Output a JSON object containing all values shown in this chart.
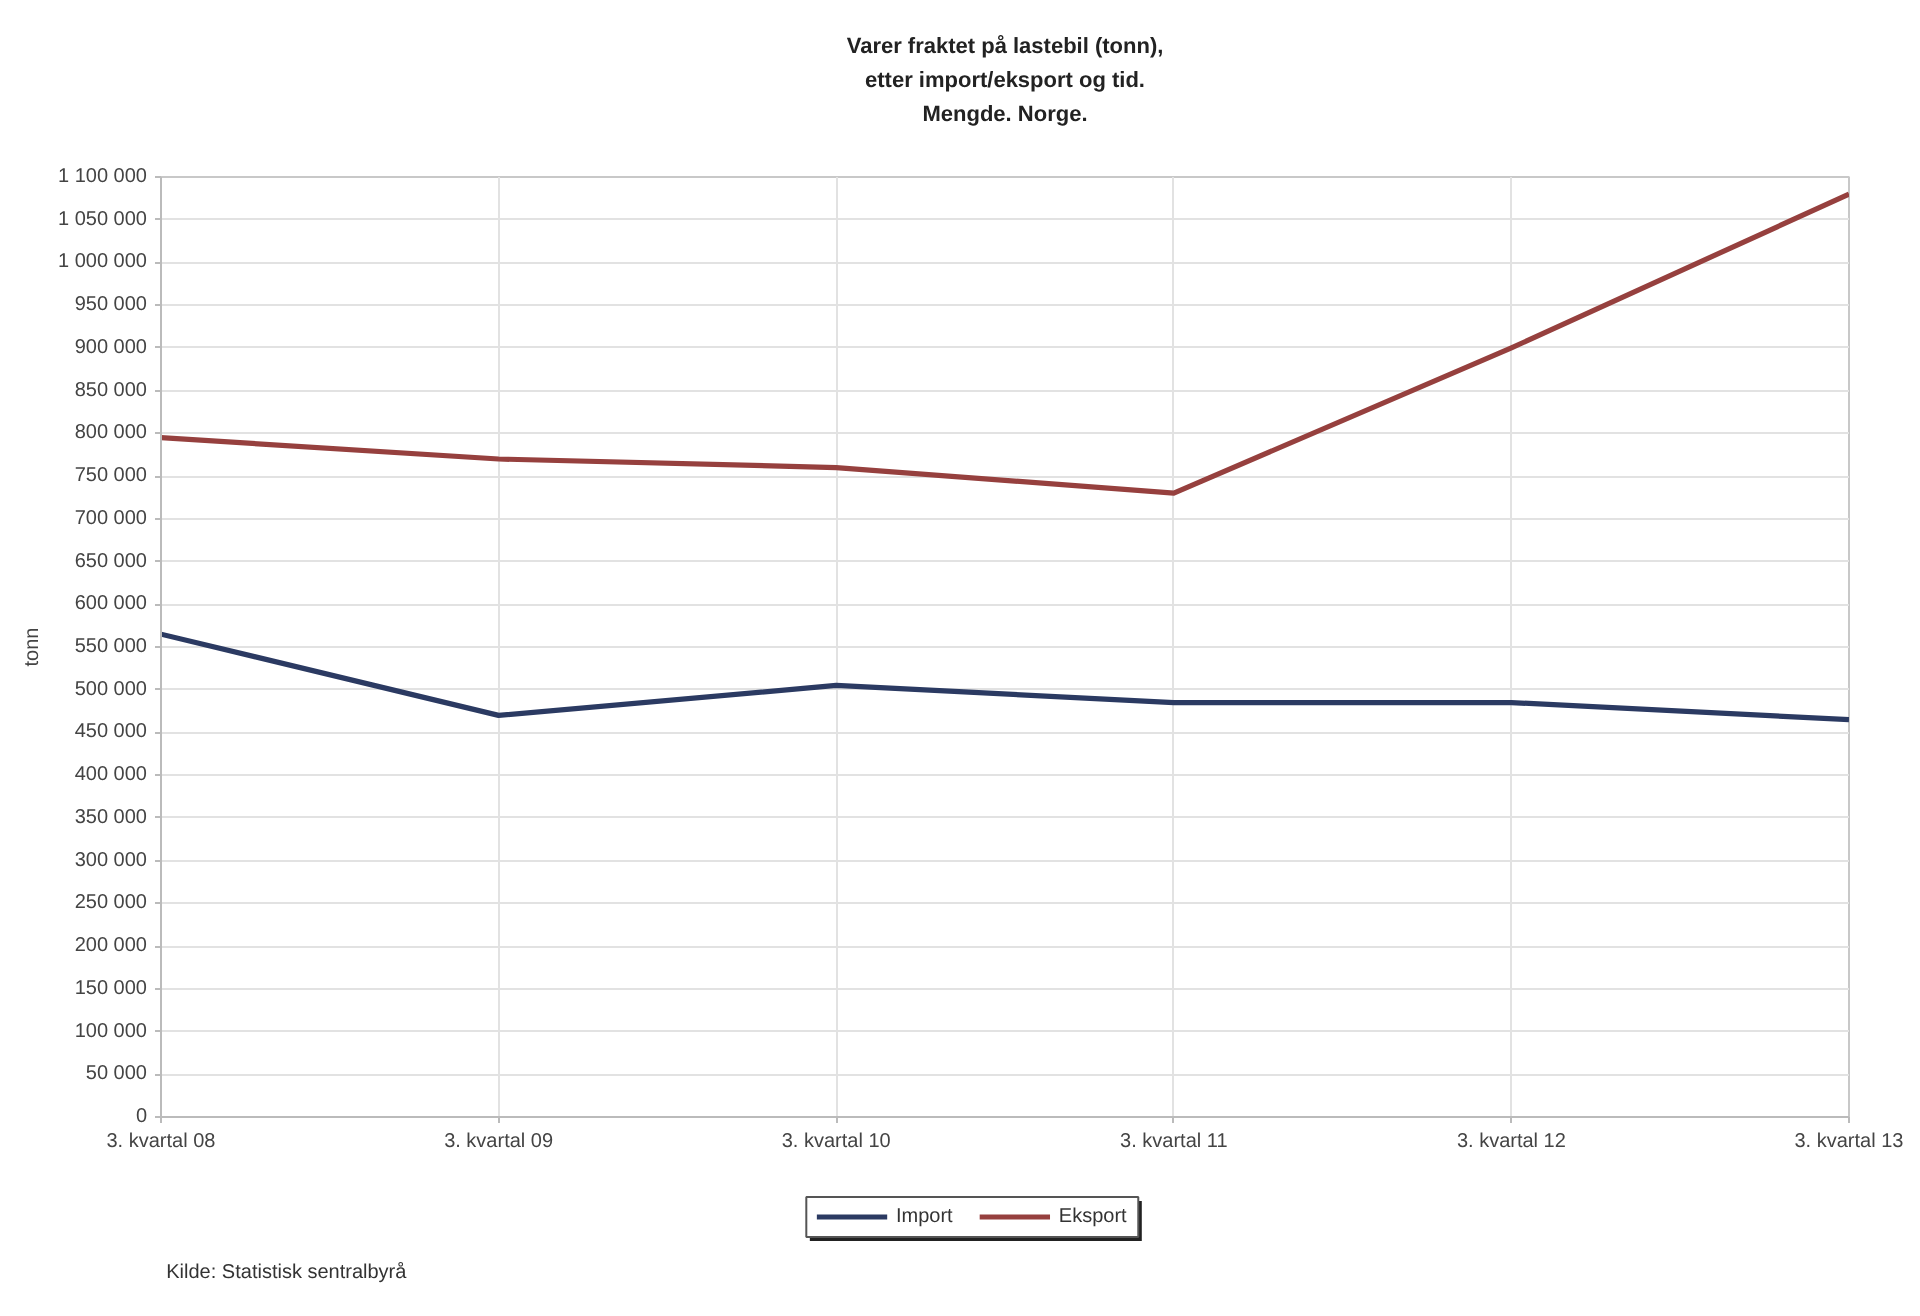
{
  "chart_data": {
    "type": "line",
    "title": "Varer fraktet på lastebil (tonn), etter import/eksport og tid. Mengde. Norge.",
    "ylabel": "tonn",
    "categories": [
      "3. kvartal 08",
      "3. kvartal 09",
      "3. kvartal 10",
      "3. kvartal 11",
      "3. kvartal 12",
      "3. kvartal 13"
    ],
    "series": [
      {
        "name": "Import",
        "color": "#2b3a62",
        "values": [
          565000,
          470000,
          505000,
          485000,
          485000,
          465000
        ]
      },
      {
        "name": "Eksport",
        "color": "#96403e",
        "values": [
          795000,
          770000,
          760000,
          730000,
          900000,
          1080000
        ]
      }
    ],
    "ylim": [
      0,
      1100000
    ],
    "yticks": [
      0,
      {
        "value": 50000,
        "label": "50 000"
      },
      {
        "value": 100000,
        "label": "100 000"
      },
      {
        "value": 150000,
        "label": "150 000"
      },
      {
        "value": 200000,
        "label": "200 000"
      },
      {
        "value": 250000,
        "label": "250 000"
      },
      {
        "value": 300000,
        "label": "300 000"
      },
      {
        "value": 350000,
        "label": "350 000"
      },
      {
        "value": 400000,
        "label": "400 000"
      },
      {
        "value": 450000,
        "label": "450 000"
      },
      {
        "value": 500000,
        "label": "500 000"
      },
      {
        "value": 550000,
        "label": "550 000"
      },
      {
        "value": 600000,
        "label": "600 000"
      },
      {
        "value": 650000,
        "label": "650 000"
      },
      {
        "value": 700000,
        "label": "700 000"
      },
      {
        "value": 750000,
        "label": "750 000"
      },
      {
        "value": 800000,
        "label": "800 000"
      },
      {
        "value": 850000,
        "label": "850 000"
      },
      {
        "value": 900000,
        "label": "900 000"
      },
      {
        "value": 950000,
        "label": "950 000"
      },
      {
        "value": 1000000,
        "label": "1 000 000"
      },
      {
        "value": 1050000,
        "label": "1 050 000"
      },
      {
        "value": 1100000,
        "label": "1 100 000"
      }
    ],
    "grid": true,
    "legend": "bottom",
    "marker": "none",
    "line_style": "solid",
    "annotations": [
      "Kilde: Statistisk sentralbyrå"
    ]
  }
}
